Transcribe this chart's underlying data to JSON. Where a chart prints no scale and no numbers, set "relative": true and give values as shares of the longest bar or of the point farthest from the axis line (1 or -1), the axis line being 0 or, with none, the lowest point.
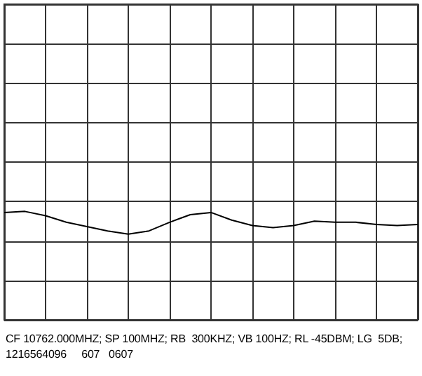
{
  "chart_data": {
    "type": "line",
    "relative": true,
    "grid": true,
    "marker": "none",
    "categories": [
      null,
      null,
      null,
      null,
      null,
      null,
      null,
      null,
      null,
      null,
      null,
      null,
      null,
      null,
      null,
      null,
      null,
      null,
      null,
      null,
      null
    ],
    "series": [
      {
        "color": "#000000",
        "values": [
          0.99,
          1,
          0.96,
          0.9,
          0.86,
          0.82,
          0.79,
          0.82,
          0.9,
          0.97,
          0.99,
          0.92,
          0.87,
          0.85,
          0.87,
          0.91,
          0.9,
          0.9,
          0.88,
          0.87,
          0.88
        ]
      }
    ],
    "annotations": [
      "CF 10762.000MHZ; SP 100MHZ; RB  300KHZ; VB 100HZ; RL -45DBM; LG  5DB;",
      "1216564096     607   0607"
    ]
  }
}
